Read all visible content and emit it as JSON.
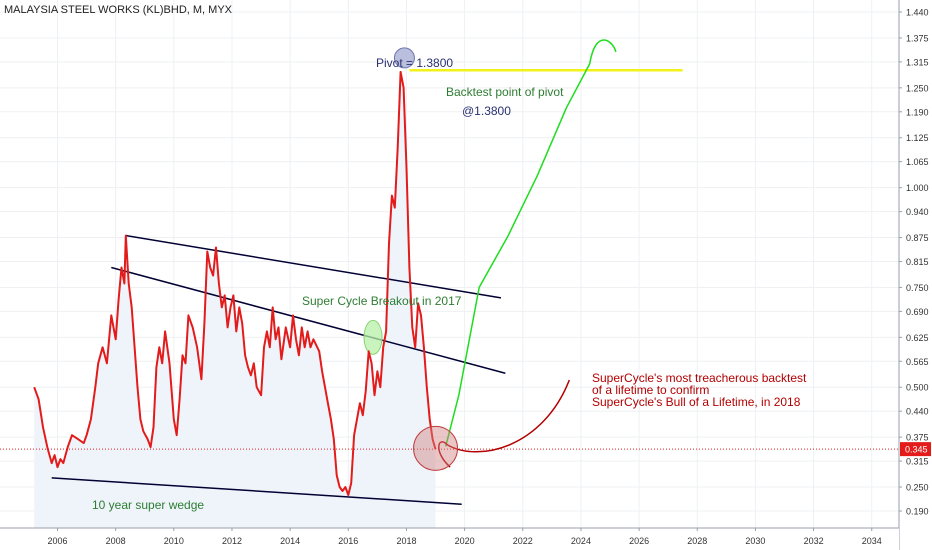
{
  "title": "MALAYSIA STEEL WORKS (KL)BHD, M, MYX",
  "chart_data": {
    "type": "line",
    "series": [
      {
        "values": [
          [
            2005.2,
            0.5
          ],
          [
            2005.35,
            0.47
          ],
          [
            2005.5,
            0.4
          ],
          [
            2005.65,
            0.35
          ],
          [
            2005.8,
            0.31
          ],
          [
            2005.9,
            0.33
          ],
          [
            2006.0,
            0.3
          ],
          [
            2006.1,
            0.32
          ],
          [
            2006.2,
            0.31
          ],
          [
            2006.35,
            0.35
          ],
          [
            2006.5,
            0.38
          ],
          [
            2006.7,
            0.37
          ],
          [
            2006.9,
            0.36
          ],
          [
            2007.0,
            0.38
          ],
          [
            2007.15,
            0.42
          ],
          [
            2007.3,
            0.5
          ],
          [
            2007.4,
            0.56
          ],
          [
            2007.55,
            0.6
          ],
          [
            2007.7,
            0.56
          ],
          [
            2007.85,
            0.68
          ],
          [
            2008.0,
            0.62
          ],
          [
            2008.1,
            0.72
          ],
          [
            2008.2,
            0.8
          ],
          [
            2008.3,
            0.76
          ],
          [
            2008.35,
            0.88
          ],
          [
            2008.45,
            0.76
          ],
          [
            2008.55,
            0.7
          ],
          [
            2008.65,
            0.6
          ],
          [
            2008.75,
            0.5
          ],
          [
            2008.85,
            0.42
          ],
          [
            2008.95,
            0.39
          ],
          [
            2009.1,
            0.37
          ],
          [
            2009.2,
            0.35
          ],
          [
            2009.3,
            0.4
          ],
          [
            2009.4,
            0.55
          ],
          [
            2009.5,
            0.6
          ],
          [
            2009.6,
            0.56
          ],
          [
            2009.7,
            0.64
          ],
          [
            2009.85,
            0.56
          ],
          [
            2010.0,
            0.42
          ],
          [
            2010.1,
            0.38
          ],
          [
            2010.2,
            0.47
          ],
          [
            2010.3,
            0.58
          ],
          [
            2010.4,
            0.56
          ],
          [
            2010.5,
            0.68
          ],
          [
            2010.65,
            0.65
          ],
          [
            2010.8,
            0.6
          ],
          [
            2010.95,
            0.52
          ],
          [
            2011.05,
            0.66
          ],
          [
            2011.15,
            0.84
          ],
          [
            2011.25,
            0.8
          ],
          [
            2011.35,
            0.78
          ],
          [
            2011.45,
            0.85
          ],
          [
            2011.55,
            0.76
          ],
          [
            2011.65,
            0.7
          ],
          [
            2011.75,
            0.73
          ],
          [
            2011.85,
            0.65
          ],
          [
            2011.95,
            0.7
          ],
          [
            2012.05,
            0.73
          ],
          [
            2012.15,
            0.64
          ],
          [
            2012.25,
            0.7
          ],
          [
            2012.35,
            0.66
          ],
          [
            2012.45,
            0.58
          ],
          [
            2012.55,
            0.55
          ],
          [
            2012.65,
            0.53
          ],
          [
            2012.75,
            0.56
          ],
          [
            2012.85,
            0.5
          ],
          [
            2013.0,
            0.48
          ],
          [
            2013.1,
            0.6
          ],
          [
            2013.2,
            0.64
          ],
          [
            2013.3,
            0.6
          ],
          [
            2013.4,
            0.7
          ],
          [
            2013.5,
            0.62
          ],
          [
            2013.6,
            0.65
          ],
          [
            2013.7,
            0.57
          ],
          [
            2013.85,
            0.65
          ],
          [
            2014.0,
            0.6
          ],
          [
            2014.1,
            0.68
          ],
          [
            2014.2,
            0.62
          ],
          [
            2014.3,
            0.58
          ],
          [
            2014.4,
            0.65
          ],
          [
            2014.5,
            0.6
          ],
          [
            2014.6,
            0.64
          ],
          [
            2014.7,
            0.6
          ],
          [
            2014.8,
            0.62
          ],
          [
            2015.0,
            0.59
          ],
          [
            2015.1,
            0.54
          ],
          [
            2015.2,
            0.5
          ],
          [
            2015.3,
            0.46
          ],
          [
            2015.4,
            0.42
          ],
          [
            2015.5,
            0.37
          ],
          [
            2015.6,
            0.28
          ],
          [
            2015.7,
            0.25
          ],
          [
            2015.8,
            0.24
          ],
          [
            2015.9,
            0.25
          ],
          [
            2016.0,
            0.23
          ],
          [
            2016.1,
            0.26
          ],
          [
            2016.2,
            0.38
          ],
          [
            2016.3,
            0.42
          ],
          [
            2016.4,
            0.46
          ],
          [
            2016.5,
            0.43
          ],
          [
            2016.6,
            0.49
          ],
          [
            2016.7,
            0.59
          ],
          [
            2016.8,
            0.56
          ],
          [
            2016.9,
            0.48
          ],
          [
            2017.0,
            0.54
          ],
          [
            2017.1,
            0.5
          ],
          [
            2017.2,
            0.6
          ],
          [
            2017.3,
            0.64
          ],
          [
            2017.4,
            0.86
          ],
          [
            2017.5,
            0.98
          ],
          [
            2017.6,
            0.95
          ],
          [
            2017.7,
            1.1
          ],
          [
            2017.8,
            1.29
          ],
          [
            2017.9,
            1.25
          ],
          [
            2018.0,
            1.05
          ],
          [
            2018.1,
            0.8
          ],
          [
            2018.2,
            0.65
          ],
          [
            2018.3,
            0.6
          ],
          [
            2018.4,
            0.71
          ],
          [
            2018.5,
            0.68
          ],
          [
            2018.6,
            0.6
          ],
          [
            2018.7,
            0.5
          ],
          [
            2018.8,
            0.42
          ],
          [
            2018.9,
            0.37
          ],
          [
            2019.0,
            0.345
          ]
        ]
      }
    ],
    "y_ticks": [
      "0.190",
      "0.250",
      "0.315",
      "0.375",
      "0.440",
      "0.500",
      "0.565",
      "0.625",
      "0.690",
      "0.750",
      "0.815",
      "0.875",
      "0.940",
      "1.000",
      "1.065",
      "1.125",
      "1.190",
      "1.250",
      "1.315",
      "1.375",
      "1.440"
    ],
    "x_ticks": [
      "2006",
      "2008",
      "2010",
      "2012",
      "2014",
      "2016",
      "2018",
      "2020",
      "2022",
      "2024",
      "2026",
      "2028",
      "2030",
      "2032",
      "2034"
    ],
    "price_label": "0.345",
    "colors": {
      "price": "#e31b1b",
      "price_fill": "#eef4fa",
      "projection": "#1edd1e",
      "pivot_line": "#f2f21b",
      "trendline": "#000033",
      "backtest_curve": "#b30000",
      "breakout_marker": "#b8f0a8",
      "backtest_circle": "#d08080",
      "pivot_marker": "#aeb4d8"
    },
    "annotations": {
      "pivot": "Pivot = 1.3800",
      "backtest_line1": "Backtest point of pivot",
      "backtest_line2": "@1.3800",
      "breakout": "Super Cycle Breakout in 2017",
      "wedge": "10 year super wedge",
      "supercycle_line1": "SuperCycle's most treacherous backtest",
      "supercycle_line2": "of a lifetime to confirm",
      "supercycle_line3": "SuperCycle's Bull of a Lifetime, in 2018"
    }
  }
}
